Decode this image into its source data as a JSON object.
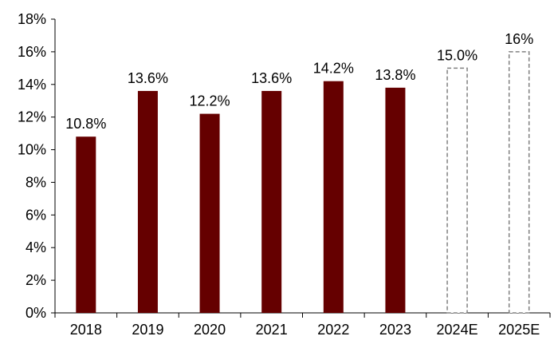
{
  "chart_data": {
    "type": "bar",
    "title": "",
    "xlabel": "",
    "ylabel": "",
    "categories": [
      "2018",
      "2019",
      "2020",
      "2021",
      "2022",
      "2023",
      "2024E",
      "2025E"
    ],
    "values": [
      10.8,
      13.6,
      12.2,
      13.6,
      14.2,
      13.8,
      15.0,
      16
    ],
    "data_labels": [
      "10.8%",
      "13.6%",
      "12.2%",
      "13.6%",
      "14.2%",
      "13.8%",
      "15.0%",
      "16%"
    ],
    "estimate": [
      false,
      false,
      false,
      false,
      false,
      false,
      true,
      true
    ],
    "ylim": [
      0,
      18
    ],
    "y_ticks": [
      0,
      2,
      4,
      6,
      8,
      10,
      12,
      14,
      16,
      18
    ],
    "y_tick_labels": [
      "0%",
      "2%",
      "4%",
      "6%",
      "8%",
      "10%",
      "12%",
      "14%",
      "16%",
      "18%"
    ],
    "grid": false,
    "legend": "none",
    "colors": {
      "actual_fill": "#650000",
      "estimate_stroke": "#808080",
      "estimate_fill": "#ffffff",
      "axis": "#000000"
    }
  }
}
